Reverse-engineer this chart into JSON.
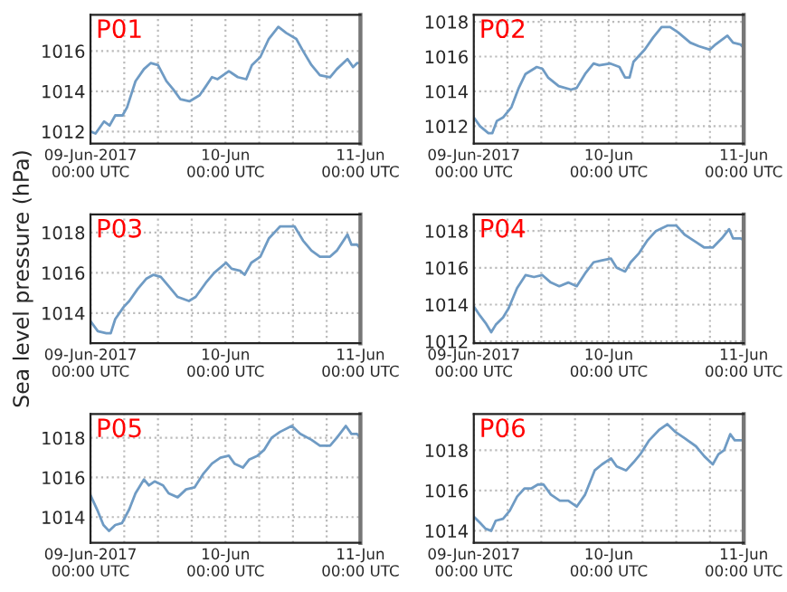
{
  "chart_data": [
    {
      "type": "line",
      "title": "P01",
      "x": [
        "2017-06-09T00:00",
        "2017-06-09T00:54",
        "2017-06-09T02:24",
        "2017-06-09T03:24",
        "2017-06-09T04:24",
        "2017-06-09T05:42",
        "2017-06-09T06:30",
        "2017-06-09T08:00",
        "2017-06-09T09:30",
        "2017-06-09T10:42",
        "2017-06-09T12:00",
        "2017-06-09T13:30",
        "2017-06-09T14:42",
        "2017-06-09T16:00",
        "2017-06-09T17:36",
        "2017-06-09T19:24",
        "2017-06-09T20:24",
        "2017-06-09T21:36",
        "2017-06-09T22:36",
        "2017-06-10T00:36",
        "2017-06-10T02:12",
        "2017-06-10T03:42",
        "2017-06-10T04:42",
        "2017-06-10T06:12",
        "2017-06-10T07:42",
        "2017-06-10T09:24",
        "2017-06-10T10:48",
        "2017-06-10T12:36",
        "2017-06-10T13:48",
        "2017-06-10T15:18",
        "2017-06-10T16:48",
        "2017-06-10T18:36",
        "2017-06-10T19:48",
        "2017-06-10T21:42",
        "2017-06-10T22:42",
        "2017-06-10T23:24",
        "2017-06-11T00:00"
      ],
      "series": [
        {
          "color": "#6f9bc4",
          "values": [
            1012.0,
            1011.9,
            1012.5,
            1012.3,
            1012.8,
            1012.8,
            1013.2,
            1014.5,
            1015.1,
            1015.4,
            1015.3,
            1014.5,
            1014.1,
            1013.6,
            1013.5,
            1013.8,
            1014.2,
            1014.7,
            1014.6,
            1015.0,
            1014.7,
            1014.6,
            1015.3,
            1015.7,
            1016.6,
            1017.2,
            1016.9,
            1016.6,
            1016.0,
            1015.3,
            1014.8,
            1014.7,
            1015.1,
            1015.6,
            1015.2,
            1015.4,
            1015.4
          ]
        }
      ],
      "xlim": [
        "2017-06-09T00:00",
        "2017-06-11T00:00"
      ],
      "ylim": [
        1011.4,
        1017.8
      ],
      "yticks": [
        1012,
        1014,
        1016
      ],
      "xticks": [
        {
          "value": "2017-06-09T00:00",
          "label": "09-Jun-2017\n00:00 UTC"
        },
        {
          "value": "2017-06-09T06:00",
          "label": null
        },
        {
          "value": "2017-06-09T12:00",
          "label": null
        },
        {
          "value": "2017-06-09T18:00",
          "label": null
        },
        {
          "value": "2017-06-10T00:00",
          "label": "10-Jun\n00:00 UTC"
        },
        {
          "value": "2017-06-10T06:00",
          "label": null
        },
        {
          "value": "2017-06-10T12:00",
          "label": null
        },
        {
          "value": "2017-06-10T18:00",
          "label": null
        },
        {
          "value": "2017-06-11T00:00",
          "label": "11-Jun\n00:00 UTC"
        }
      ],
      "grid": true
    },
    {
      "type": "line",
      "title": "P02",
      "x": [
        "2017-06-09T00:00",
        "2017-06-09T01:06",
        "2017-06-09T02:36",
        "2017-06-09T03:18",
        "2017-06-09T04:06",
        "2017-06-09T05:12",
        "2017-06-09T06:42",
        "2017-06-09T08:00",
        "2017-06-09T09:12",
        "2017-06-09T11:12",
        "2017-06-09T12:12",
        "2017-06-09T13:12",
        "2017-06-09T15:06",
        "2017-06-09T17:18",
        "2017-06-09T18:18",
        "2017-06-09T19:48",
        "2017-06-09T21:18",
        "2017-06-09T22:18",
        "2017-06-10T00:18",
        "2017-06-10T01:54",
        "2017-06-10T02:54",
        "2017-06-10T03:42",
        "2017-06-10T04:24",
        "2017-06-10T06:24",
        "2017-06-10T07:54",
        "2017-06-10T09:24",
        "2017-06-10T10:54",
        "2017-06-10T12:18",
        "2017-06-10T14:30",
        "2017-06-10T16:00",
        "2017-06-10T18:00",
        "2017-06-10T19:00",
        "2017-06-10T21:06",
        "2017-06-10T22:06",
        "2017-06-10T23:24",
        "2017-06-11T00:00"
      ],
      "series": [
        {
          "color": "#6f9bc4",
          "values": [
            1012.5,
            1012.0,
            1011.6,
            1011.6,
            1012.3,
            1012.5,
            1013.1,
            1014.2,
            1015.0,
            1015.4,
            1015.3,
            1014.8,
            1014.3,
            1014.1,
            1014.2,
            1015.0,
            1015.6,
            1015.5,
            1015.6,
            1015.4,
            1014.8,
            1014.8,
            1015.7,
            1016.4,
            1017.1,
            1017.7,
            1017.7,
            1017.4,
            1016.8,
            1016.6,
            1016.4,
            1016.7,
            1017.2,
            1016.8,
            1016.7,
            1016.5
          ]
        }
      ],
      "xlim": [
        "2017-06-09T00:00",
        "2017-06-11T00:00"
      ],
      "ylim": [
        1011.0,
        1018.4
      ],
      "yticks": [
        1012,
        1014,
        1016,
        1018
      ],
      "xticks": [
        {
          "value": "2017-06-09T00:00",
          "label": "09-Jun-2017\n00:00 UTC"
        },
        {
          "value": "2017-06-09T06:00",
          "label": null
        },
        {
          "value": "2017-06-09T12:00",
          "label": null
        },
        {
          "value": "2017-06-09T18:00",
          "label": null
        },
        {
          "value": "2017-06-10T00:00",
          "label": "10-Jun\n00:00 UTC"
        },
        {
          "value": "2017-06-10T06:00",
          "label": null
        },
        {
          "value": "2017-06-10T12:00",
          "label": null
        },
        {
          "value": "2017-06-10T18:00",
          "label": null
        },
        {
          "value": "2017-06-11T00:00",
          "label": "11-Jun\n00:00 UTC"
        }
      ],
      "grid": true
    },
    {
      "type": "line",
      "title": "P03",
      "ylabel": "Sea level pressure (hPa)",
      "x": [
        "2017-06-09T00:00",
        "2017-06-09T01:18",
        "2017-06-09T02:48",
        "2017-06-09T03:36",
        "2017-06-09T04:24",
        "2017-06-09T05:54",
        "2017-06-09T06:54",
        "2017-06-09T08:24",
        "2017-06-09T09:54",
        "2017-06-09T11:12",
        "2017-06-09T12:30",
        "2017-06-09T14:00",
        "2017-06-09T15:30",
        "2017-06-09T17:30",
        "2017-06-09T18:42",
        "2017-06-09T20:30",
        "2017-06-09T22:00",
        "2017-06-10T00:06",
        "2017-06-10T01:06",
        "2017-06-10T02:36",
        "2017-06-10T03:24",
        "2017-06-10T04:36",
        "2017-06-10T06:12",
        "2017-06-10T07:42",
        "2017-06-10T09:42",
        "2017-06-10T12:18",
        "2017-06-10T13:48",
        "2017-06-10T15:18",
        "2017-06-10T16:48",
        "2017-06-10T18:36",
        "2017-06-10T19:48",
        "2017-06-10T21:42",
        "2017-06-10T22:24",
        "2017-06-10T23:24",
        "2017-06-11T00:00"
      ],
      "series": [
        {
          "color": "#6f9bc4",
          "values": [
            1013.6,
            1013.1,
            1013.0,
            1013.0,
            1013.7,
            1014.3,
            1014.6,
            1015.2,
            1015.7,
            1015.9,
            1015.8,
            1015.3,
            1014.8,
            1014.6,
            1014.8,
            1015.5,
            1016.0,
            1016.5,
            1016.2,
            1016.1,
            1015.9,
            1016.5,
            1016.8,
            1017.7,
            1018.3,
            1018.3,
            1017.6,
            1017.1,
            1016.8,
            1016.8,
            1017.1,
            1017.9,
            1017.4,
            1017.4,
            1017.2
          ]
        }
      ],
      "xlim": [
        "2017-06-09T00:00",
        "2017-06-11T00:00"
      ],
      "ylim": [
        1012.5,
        1018.9
      ],
      "yticks": [
        1014,
        1016,
        1018
      ],
      "xticks": [
        {
          "value": "2017-06-09T00:00",
          "label": "09-Jun-2017\n00:00 UTC"
        },
        {
          "value": "2017-06-09T06:00",
          "label": null
        },
        {
          "value": "2017-06-09T12:00",
          "label": null
        },
        {
          "value": "2017-06-09T18:00",
          "label": null
        },
        {
          "value": "2017-06-10T00:00",
          "label": "10-Jun\n00:00 UTC"
        },
        {
          "value": "2017-06-10T06:00",
          "label": null
        },
        {
          "value": "2017-06-10T12:00",
          "label": null
        },
        {
          "value": "2017-06-10T18:00",
          "label": null
        },
        {
          "value": "2017-06-11T00:00",
          "label": "11-Jun\n00:00 UTC"
        }
      ],
      "grid": true
    },
    {
      "type": "line",
      "title": "P04",
      "x": [
        "2017-06-09T00:00",
        "2017-06-09T01:06",
        "2017-06-09T02:06",
        "2017-06-09T03:06",
        "2017-06-09T03:54",
        "2017-06-09T05:12",
        "2017-06-09T06:12",
        "2017-06-09T07:42",
        "2017-06-09T09:12",
        "2017-06-09T10:42",
        "2017-06-09T12:12",
        "2017-06-09T13:42",
        "2017-06-09T15:12",
        "2017-06-09T16:48",
        "2017-06-09T18:18",
        "2017-06-09T19:48",
        "2017-06-09T21:18",
        "2017-06-09T22:48",
        "2017-06-10T00:24",
        "2017-06-10T01:24",
        "2017-06-10T02:54",
        "2017-06-10T03:54",
        "2017-06-10T05:24",
        "2017-06-10T06:54",
        "2017-06-10T08:24",
        "2017-06-10T10:30",
        "2017-06-10T12:00",
        "2017-06-10T13:30",
        "2017-06-10T15:30",
        "2017-06-10T17:00",
        "2017-06-10T18:30",
        "2017-06-10T20:06",
        "2017-06-10T21:24",
        "2017-06-10T22:06",
        "2017-06-10T23:24",
        "2017-06-11T00:00"
      ],
      "series": [
        {
          "color": "#6f9bc4",
          "values": [
            1013.9,
            1013.4,
            1013.0,
            1012.5,
            1012.9,
            1013.3,
            1013.8,
            1014.9,
            1015.6,
            1015.5,
            1015.6,
            1015.2,
            1015.0,
            1015.2,
            1015.0,
            1015.7,
            1016.3,
            1016.4,
            1016.5,
            1016.0,
            1015.8,
            1016.3,
            1016.8,
            1017.5,
            1018.0,
            1018.3,
            1018.3,
            1017.8,
            1017.4,
            1017.1,
            1017.1,
            1017.6,
            1018.1,
            1017.6,
            1017.6,
            1017.5
          ]
        }
      ],
      "xlim": [
        "2017-06-09T00:00",
        "2017-06-11T00:00"
      ],
      "ylim": [
        1011.9,
        1018.9
      ],
      "yticks": [
        1012,
        1014,
        1016,
        1018
      ],
      "xticks": [
        {
          "value": "2017-06-09T00:00",
          "label": "09-Jun-2017\n00:00 UTC"
        },
        {
          "value": "2017-06-09T06:00",
          "label": null
        },
        {
          "value": "2017-06-09T12:00",
          "label": null
        },
        {
          "value": "2017-06-09T18:00",
          "label": null
        },
        {
          "value": "2017-06-10T00:00",
          "label": "10-Jun\n00:00 UTC"
        },
        {
          "value": "2017-06-10T06:00",
          "label": null
        },
        {
          "value": "2017-06-10T12:00",
          "label": null
        },
        {
          "value": "2017-06-10T18:00",
          "label": null
        },
        {
          "value": "2017-06-11T00:00",
          "label": "11-Jun\n00:00 UTC"
        }
      ],
      "grid": true
    },
    {
      "type": "line",
      "title": "P05",
      "x": [
        "2017-06-09T00:00",
        "2017-06-09T01:18",
        "2017-06-09T02:18",
        "2017-06-09T03:18",
        "2017-06-09T04:24",
        "2017-06-09T05:36",
        "2017-06-09T06:54",
        "2017-06-09T08:00",
        "2017-06-09T09:30",
        "2017-06-09T10:24",
        "2017-06-09T11:24",
        "2017-06-09T12:54",
        "2017-06-09T13:54",
        "2017-06-09T15:30",
        "2017-06-09T17:00",
        "2017-06-09T18:30",
        "2017-06-09T20:06",
        "2017-06-09T21:36",
        "2017-06-09T23:06",
        "2017-06-10T00:36",
        "2017-06-10T01:36",
        "2017-06-10T03:06",
        "2017-06-10T04:12",
        "2017-06-10T05:42",
        "2017-06-10T06:54",
        "2017-06-10T08:12",
        "2017-06-10T09:42",
        "2017-06-10T11:48",
        "2017-06-10T13:18",
        "2017-06-10T15:18",
        "2017-06-10T16:48",
        "2017-06-10T18:36",
        "2017-06-10T19:48",
        "2017-06-10T21:24",
        "2017-06-10T22:24",
        "2017-06-10T23:24",
        "2017-06-11T00:00"
      ],
      "series": [
        {
          "color": "#6f9bc4",
          "values": [
            1015.1,
            1014.3,
            1013.6,
            1013.3,
            1013.6,
            1013.7,
            1014.4,
            1015.2,
            1015.9,
            1015.6,
            1015.8,
            1015.6,
            1015.2,
            1015.0,
            1015.4,
            1015.5,
            1016.2,
            1016.7,
            1017.0,
            1017.1,
            1016.7,
            1016.5,
            1016.9,
            1017.1,
            1017.4,
            1018.0,
            1018.3,
            1018.6,
            1018.2,
            1017.9,
            1017.6,
            1017.6,
            1018.0,
            1018.6,
            1018.2,
            1018.2,
            1018.0
          ]
        }
      ],
      "xlim": [
        "2017-06-09T00:00",
        "2017-06-11T00:00"
      ],
      "ylim": [
        1012.7,
        1019.2
      ],
      "yticks": [
        1014,
        1016,
        1018
      ],
      "xticks": [
        {
          "value": "2017-06-09T00:00",
          "label": "09-Jun-2017\n00:00 UTC"
        },
        {
          "value": "2017-06-09T06:00",
          "label": null
        },
        {
          "value": "2017-06-09T12:00",
          "label": null
        },
        {
          "value": "2017-06-09T18:00",
          "label": null
        },
        {
          "value": "2017-06-10T00:00",
          "label": "10-Jun\n00:00 UTC"
        },
        {
          "value": "2017-06-10T06:00",
          "label": null
        },
        {
          "value": "2017-06-10T12:00",
          "label": null
        },
        {
          "value": "2017-06-10T18:00",
          "label": null
        },
        {
          "value": "2017-06-11T00:00",
          "label": "11-Jun\n00:00 UTC"
        }
      ],
      "grid": true
    },
    {
      "type": "line",
      "title": "P06",
      "x": [
        "2017-06-09T00:00",
        "2017-06-09T01:06",
        "2017-06-09T02:06",
        "2017-06-09T03:06",
        "2017-06-09T03:54",
        "2017-06-09T05:12",
        "2017-06-09T06:24",
        "2017-06-09T07:42",
        "2017-06-09T09:00",
        "2017-06-09T10:12",
        "2017-06-09T11:24",
        "2017-06-09T12:24",
        "2017-06-09T13:42",
        "2017-06-09T15:18",
        "2017-06-09T16:48",
        "2017-06-09T18:18",
        "2017-06-09T19:48",
        "2017-06-09T21:30",
        "2017-06-09T22:48",
        "2017-06-10T00:24",
        "2017-06-10T01:24",
        "2017-06-10T03:06",
        "2017-06-10T04:24",
        "2017-06-10T05:36",
        "2017-06-10T07:12",
        "2017-06-10T08:54",
        "2017-06-10T10:24",
        "2017-06-10T11:54",
        "2017-06-10T13:30",
        "2017-06-10T15:30",
        "2017-06-10T17:00",
        "2017-06-10T18:30",
        "2017-06-10T19:30",
        "2017-06-10T20:30",
        "2017-06-10T21:36",
        "2017-06-10T22:24",
        "2017-06-11T00:00"
      ],
      "series": [
        {
          "color": "#6f9bc4",
          "values": [
            1014.7,
            1014.4,
            1014.1,
            1014.0,
            1014.5,
            1014.6,
            1015.0,
            1015.7,
            1016.1,
            1016.1,
            1016.3,
            1016.3,
            1015.8,
            1015.5,
            1015.5,
            1015.2,
            1015.8,
            1017.0,
            1017.3,
            1017.6,
            1017.2,
            1017.0,
            1017.4,
            1017.8,
            1018.5,
            1019.0,
            1019.3,
            1018.9,
            1018.6,
            1018.2,
            1017.7,
            1017.3,
            1017.8,
            1018.0,
            1018.8,
            1018.5,
            1018.5
          ]
        }
      ],
      "xlim": [
        "2017-06-09T00:00",
        "2017-06-11T00:00"
      ],
      "ylim": [
        1013.4,
        1019.8
      ],
      "yticks": [
        1014,
        1016,
        1018
      ],
      "xticks": [
        {
          "value": "2017-06-09T00:00",
          "label": "09-Jun-2017\n00:00 UTC"
        },
        {
          "value": "2017-06-09T06:00",
          "label": null
        },
        {
          "value": "2017-06-09T12:00",
          "label": null
        },
        {
          "value": "2017-06-09T18:00",
          "label": null
        },
        {
          "value": "2017-06-10T00:00",
          "label": "10-Jun\n00:00 UTC"
        },
        {
          "value": "2017-06-10T06:00",
          "label": null
        },
        {
          "value": "2017-06-10T12:00",
          "label": null
        },
        {
          "value": "2017-06-10T18:00",
          "label": null
        },
        {
          "value": "2017-06-11T00:00",
          "label": "11-Jun\n00:00 UTC"
        }
      ],
      "grid": true
    }
  ]
}
